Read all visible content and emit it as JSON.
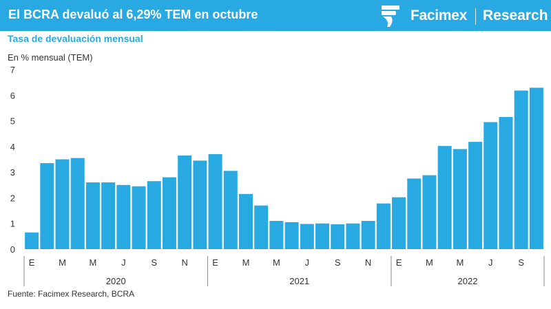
{
  "header": {
    "title": "El BCRA devaluó al 6,29% TEM en octubre",
    "brand": "Facimex",
    "brand_section": "Research",
    "logo_icon": "facimex-logo-icon",
    "background_color": "#29a9e1"
  },
  "chart_data": {
    "type": "bar",
    "title": "Tasa de devaluación mensual",
    "ylabel": "En % mensual (TEM)",
    "ylim": [
      0,
      7
    ],
    "yticks": [
      "0",
      "1",
      "2",
      "3",
      "4",
      "5",
      "6",
      "7"
    ],
    "grid": false,
    "bar_color": "#29a9e1",
    "categories": [
      "Ene-2020",
      "Feb-2020",
      "Mar-2020",
      "Abr-2020",
      "May-2020",
      "Jun-2020",
      "Jul-2020",
      "Ago-2020",
      "Sep-2020",
      "Oct-2020",
      "Nov-2020",
      "Dic-2020",
      "Ene-2021",
      "Feb-2021",
      "Mar-2021",
      "Abr-2021",
      "May-2021",
      "Jun-2021",
      "Jul-2021",
      "Ago-2021",
      "Sep-2021",
      "Oct-2021",
      "Nov-2021",
      "Dic-2021",
      "Ene-2022",
      "Feb-2022",
      "Mar-2022",
      "Abr-2022",
      "May-2022",
      "Jun-2022",
      "Jul-2022",
      "Ago-2022",
      "Sep-2022",
      "Oct-2022"
    ],
    "values": [
      0.65,
      3.35,
      3.5,
      3.55,
      2.6,
      2.6,
      2.5,
      2.45,
      2.65,
      2.8,
      3.65,
      3.45,
      3.7,
      3.05,
      2.15,
      1.7,
      1.1,
      1.05,
      0.98,
      1.0,
      0.97,
      1.0,
      1.1,
      1.78,
      2.02,
      2.75,
      2.88,
      4.02,
      3.9,
      4.18,
      4.95,
      5.15,
      6.18,
      6.29
    ],
    "tick_labels": [
      "E",
      "",
      "M",
      "",
      "M",
      "",
      "J",
      "",
      "S",
      "",
      "N",
      "",
      "E",
      "",
      "M",
      "",
      "M",
      "",
      "J",
      "",
      "S",
      "",
      "N",
      "",
      "E",
      "",
      "M",
      "",
      "M",
      "",
      "J",
      "",
      "S",
      ""
    ],
    "year_groups": [
      {
        "label": "2020",
        "count": 12
      },
      {
        "label": "2021",
        "count": 12
      },
      {
        "label": "2022",
        "count": 10
      }
    ]
  },
  "footer": {
    "source": "Fuente: Facimex Research, BCRA"
  }
}
